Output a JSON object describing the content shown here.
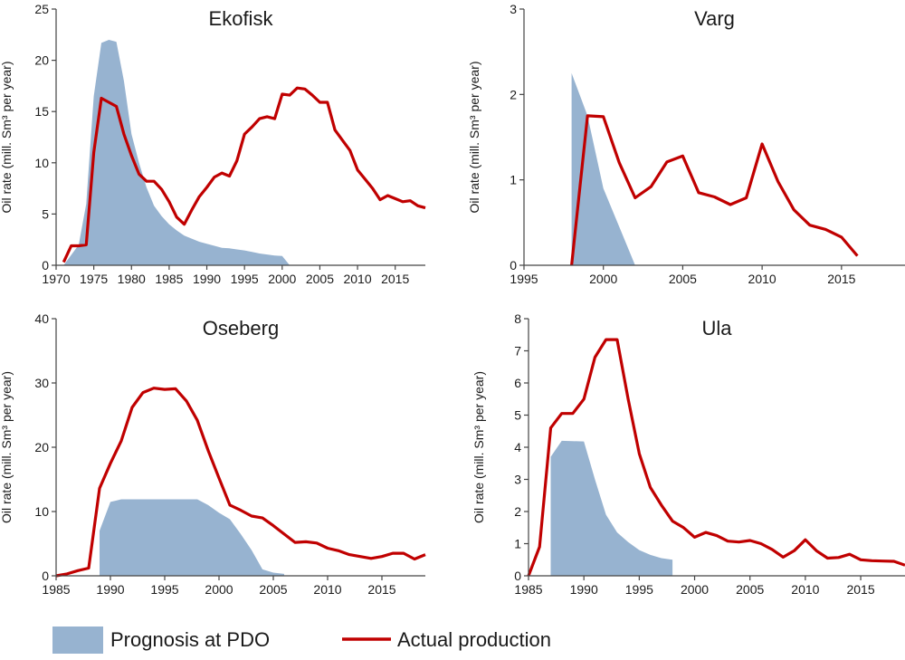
{
  "chart_data": [
    {
      "type": "area",
      "title": "Ekofisk",
      "ylabel": "Oil rate (mill. Sm³ per year)",
      "xlim": [
        1970,
        2019
      ],
      "ylim": [
        0,
        25
      ],
      "xticks": [
        1970,
        1975,
        1980,
        1985,
        1990,
        1995,
        2000,
        2005,
        2010,
        2015
      ],
      "yticks": [
        0,
        5,
        10,
        15,
        20,
        25
      ],
      "series": [
        {
          "name": "Prognosis at PDO",
          "kind": "area",
          "x": [
            1971,
            1973,
            1974,
            1975,
            1976,
            1977,
            1978,
            1979,
            1980,
            1981,
            1982,
            1983,
            1984,
            1985,
            1986,
            1987,
            1988,
            1989,
            1990,
            1991,
            1992,
            1993,
            1994,
            1995,
            1996,
            1997,
            1998,
            1999,
            2000,
            2001
          ],
          "y": [
            0,
            2,
            6,
            16.5,
            21.7,
            22,
            21.8,
            18,
            12.8,
            10,
            7.6,
            5.8,
            4.8,
            4,
            3.4,
            2.9,
            2.6,
            2.3,
            2.1,
            1.9,
            1.7,
            1.65,
            1.55,
            1.45,
            1.3,
            1.15,
            1.05,
            0.95,
            0.9,
            0
          ]
        },
        {
          "name": "Actual production",
          "kind": "line",
          "x": [
            1971,
            1972,
            1973,
            1974,
            1975,
            1976,
            1977,
            1978,
            1979,
            1980,
            1981,
            1982,
            1983,
            1984,
            1985,
            1986,
            1987,
            1988,
            1989,
            1990,
            1991,
            1992,
            1993,
            1994,
            1995,
            1996,
            1997,
            1998,
            1999,
            2000,
            2001,
            2002,
            2003,
            2004,
            2005,
            2006,
            2007,
            2008,
            2009,
            2010,
            2011,
            2012,
            2013,
            2014,
            2015,
            2016,
            2017,
            2018,
            2019
          ],
          "y": [
            0.3,
            1.9,
            1.9,
            2.0,
            11.0,
            16.3,
            15.9,
            15.5,
            12.8,
            10.7,
            8.9,
            8.2,
            8.2,
            7.4,
            6.2,
            4.7,
            4.0,
            5.4,
            6.7,
            7.6,
            8.6,
            9.0,
            8.7,
            10.2,
            12.8,
            13.5,
            14.3,
            14.5,
            14.3,
            16.7,
            16.6,
            17.3,
            17.2,
            16.6,
            15.9,
            15.9,
            13.2,
            12.2,
            11.2,
            9.3,
            8.4,
            7.5,
            6.4,
            6.8,
            6.5,
            6.2,
            6.3,
            5.8,
            5.6
          ]
        }
      ]
    },
    {
      "type": "area",
      "title": "Varg",
      "ylabel": "Oil rate (mill. Sm³ per year)",
      "xlim": [
        1995,
        2019
      ],
      "ylim": [
        0,
        3
      ],
      "xticks": [
        1995,
        2000,
        2005,
        2010,
        2015
      ],
      "yticks": [
        0,
        1,
        2,
        3
      ],
      "series": [
        {
          "name": "Prognosis at PDO",
          "kind": "area",
          "x": [
            1998,
            1998,
            1999,
            2000,
            2001,
            2002
          ],
          "y": [
            0,
            2.25,
            1.75,
            0.9,
            0.45,
            0
          ]
        },
        {
          "name": "Actual production",
          "kind": "line",
          "x": [
            1998,
            1999,
            2000,
            2001,
            2002,
            2003,
            2004,
            2005,
            2006,
            2007,
            2008,
            2009,
            2010,
            2011,
            2012,
            2013,
            2014,
            2015,
            2016
          ],
          "y": [
            0,
            1.75,
            1.74,
            1.2,
            0.79,
            0.92,
            1.21,
            1.28,
            0.85,
            0.8,
            0.71,
            0.79,
            1.42,
            0.98,
            0.65,
            0.47,
            0.42,
            0.33,
            0.11
          ]
        }
      ]
    },
    {
      "type": "area",
      "title": "Oseberg",
      "ylabel": "Oil rate (mill. Sm³ per year)",
      "xlim": [
        1985,
        2019
      ],
      "ylim": [
        0,
        40
      ],
      "xticks": [
        1985,
        1990,
        1995,
        2000,
        2005,
        2010,
        2015
      ],
      "yticks": [
        0,
        10,
        20,
        30,
        40
      ],
      "series": [
        {
          "name": "Prognosis at PDO",
          "kind": "area",
          "x": [
            1989,
            1989,
            1990,
            1991,
            1998,
            1999,
            2000,
            2001,
            2002,
            2003,
            2004,
            2005,
            2006
          ],
          "y": [
            0,
            7,
            11.5,
            11.9,
            11.9,
            11,
            9.8,
            8.8,
            6.5,
            4,
            1,
            0.5,
            0.3
          ]
        },
        {
          "name": "Actual production",
          "kind": "line",
          "x": [
            1985,
            1986,
            1987,
            1988,
            1989,
            1990,
            1991,
            1992,
            1993,
            1994,
            1995,
            1996,
            1997,
            1998,
            1999,
            2000,
            2001,
            2002,
            2003,
            2004,
            2005,
            2006,
            2007,
            2008,
            2009,
            2010,
            2011,
            2012,
            2013,
            2014,
            2015,
            2016,
            2017,
            2018,
            2019
          ],
          "y": [
            0,
            0.3,
            0.8,
            1.2,
            13.6,
            17.5,
            21,
            26.2,
            28.5,
            29.2,
            29,
            29.1,
            27.2,
            24.2,
            19.5,
            15.2,
            11,
            10.2,
            9.3,
            9,
            7.8,
            6.5,
            5.2,
            5.3,
            5.1,
            4.3,
            3.9,
            3.3,
            3.0,
            2.7,
            3.0,
            3.5,
            3.5,
            2.6,
            3.3
          ]
        }
      ]
    },
    {
      "type": "area",
      "title": "Ula",
      "ylabel": "Oil rate (mill. Sm³ per year)",
      "xlim": [
        1985,
        2019
      ],
      "ylim": [
        0,
        8
      ],
      "xticks": [
        1985,
        1990,
        1995,
        2000,
        2005,
        2010,
        2015
      ],
      "yticks": [
        0,
        1,
        2,
        3,
        4,
        5,
        6,
        7,
        8
      ],
      "series": [
        {
          "name": "Prognosis at PDO",
          "kind": "area",
          "x": [
            1987,
            1987,
            1988,
            1990,
            1991,
            1992,
            1993,
            1994,
            1995,
            1996,
            1997,
            1998,
            1998
          ],
          "y": [
            0,
            3.7,
            4.2,
            4.18,
            3.0,
            1.9,
            1.35,
            1.05,
            0.8,
            0.65,
            0.55,
            0.5,
            0
          ]
        },
        {
          "name": "Actual production",
          "kind": "line",
          "x": [
            1985,
            1986,
            1987,
            1988,
            1989,
            1990,
            1991,
            1992,
            1993,
            1994,
            1995,
            1996,
            1997,
            1998,
            1999,
            2000,
            2001,
            2002,
            2003,
            2004,
            2005,
            2006,
            2007,
            2008,
            2009,
            2010,
            2011,
            2012,
            2013,
            2014,
            2015,
            2016,
            2017,
            2018,
            2019
          ],
          "y": [
            0,
            0.9,
            4.6,
            5.05,
            5.05,
            5.5,
            6.8,
            7.35,
            7.35,
            5.5,
            3.8,
            2.75,
            2.2,
            1.7,
            1.5,
            1.2,
            1.35,
            1.25,
            1.08,
            1.05,
            1.1,
            1.0,
            0.82,
            0.58,
            0.78,
            1.12,
            0.78,
            0.55,
            0.57,
            0.67,
            0.5,
            0.47,
            0.46,
            0.45,
            0.33
          ]
        }
      ]
    }
  ],
  "legend": {
    "items": [
      {
        "label": "Prognosis at PDO",
        "kind": "area",
        "color": "#97b3d0"
      },
      {
        "label": "Actual production",
        "kind": "line",
        "color": "#c00000"
      }
    ]
  },
  "colors": {
    "prognosis": "#97b3d0",
    "actual": "#c00000",
    "axis": "#444444"
  }
}
